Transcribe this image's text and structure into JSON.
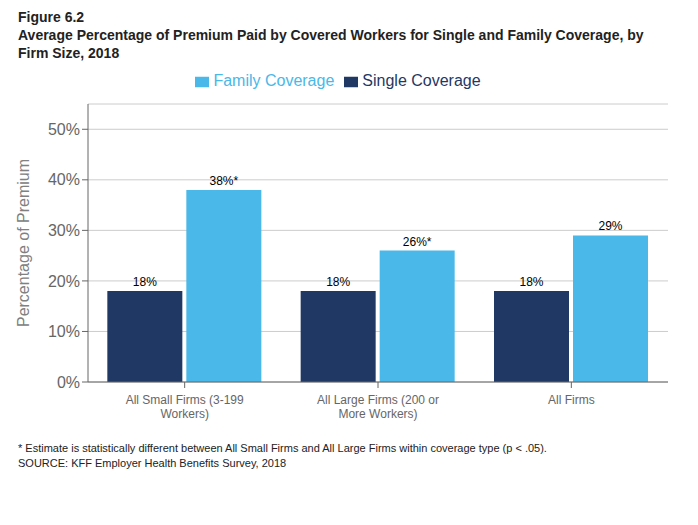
{
  "chart_data": {
    "type": "bar",
    "title": "Figure 6.2",
    "subtitle": "Average Percentage of Premium Paid by Covered Workers for Single and Family Coverage, by\nFirm Size, 2018",
    "categories": [
      "All Small Firms (3-199 Workers)",
      "All Large Firms (200 or More Workers)",
      "All Firms"
    ],
    "series": [
      {
        "name": "Single Coverage",
        "color": "#1f3864",
        "values": [
          18,
          18,
          18
        ],
        "value_labels": [
          "18%",
          "18%",
          "18%"
        ]
      },
      {
        "name": "Family Coverage",
        "color": "#4ab8e8",
        "values": [
          38,
          26,
          29
        ],
        "value_labels": [
          "38%*",
          "26%*",
          "29%"
        ]
      }
    ],
    "ylabel": "Percentage of Premium",
    "ylim": [
      0,
      55
    ],
    "yticks": [
      {
        "value": 0,
        "label": "0%"
      },
      {
        "value": 10,
        "label": "10%"
      },
      {
        "value": 20,
        "label": "20%"
      },
      {
        "value": 30,
        "label": "30%"
      },
      {
        "value": 40,
        "label": "40%"
      },
      {
        "value": 50,
        "label": "50%"
      }
    ],
    "grid": true,
    "legend": "top",
    "data_labels": true,
    "annotations": [
      "* Estimate is statistically different between All Small Firms and All Large Firms within coverage type (p < .05).",
      "SOURCE: KFF Employer Health Benefits Survey, 2018"
    ]
  }
}
